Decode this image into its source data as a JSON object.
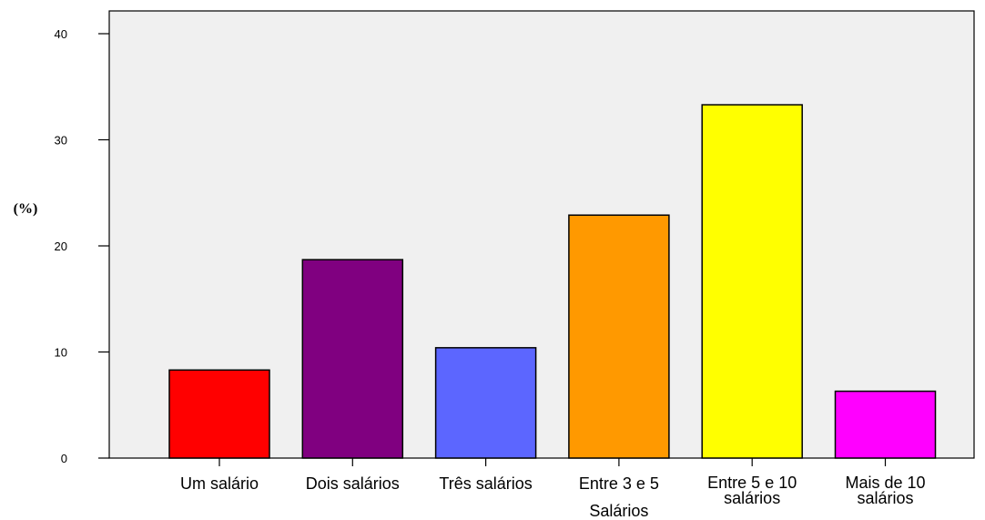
{
  "chart_data": {
    "type": "bar",
    "title": "",
    "xlabel": "",
    "ylabel": "(%)",
    "ylim": [
      0,
      40
    ],
    "yticks": [
      "0",
      "10",
      "20",
      "30",
      "40"
    ],
    "grid": false,
    "legend": "none",
    "plot_background": "#f0f0f0",
    "categories": [
      [
        "Um salário"
      ],
      [
        "Dois salários"
      ],
      [
        "Três salários"
      ],
      [
        "Entre 3 e 5",
        "Salários"
      ],
      [
        "Entre 5 e 10",
        "salários"
      ],
      [
        "Mais de 10",
        "salários"
      ]
    ],
    "values": [
      8.3,
      18.7,
      10.4,
      22.9,
      33.3,
      6.3
    ],
    "colors": [
      "#ff0000",
      "#800080",
      "#5c66ff",
      "#ff9900",
      "#ffff00",
      "#ff00ff"
    ]
  }
}
